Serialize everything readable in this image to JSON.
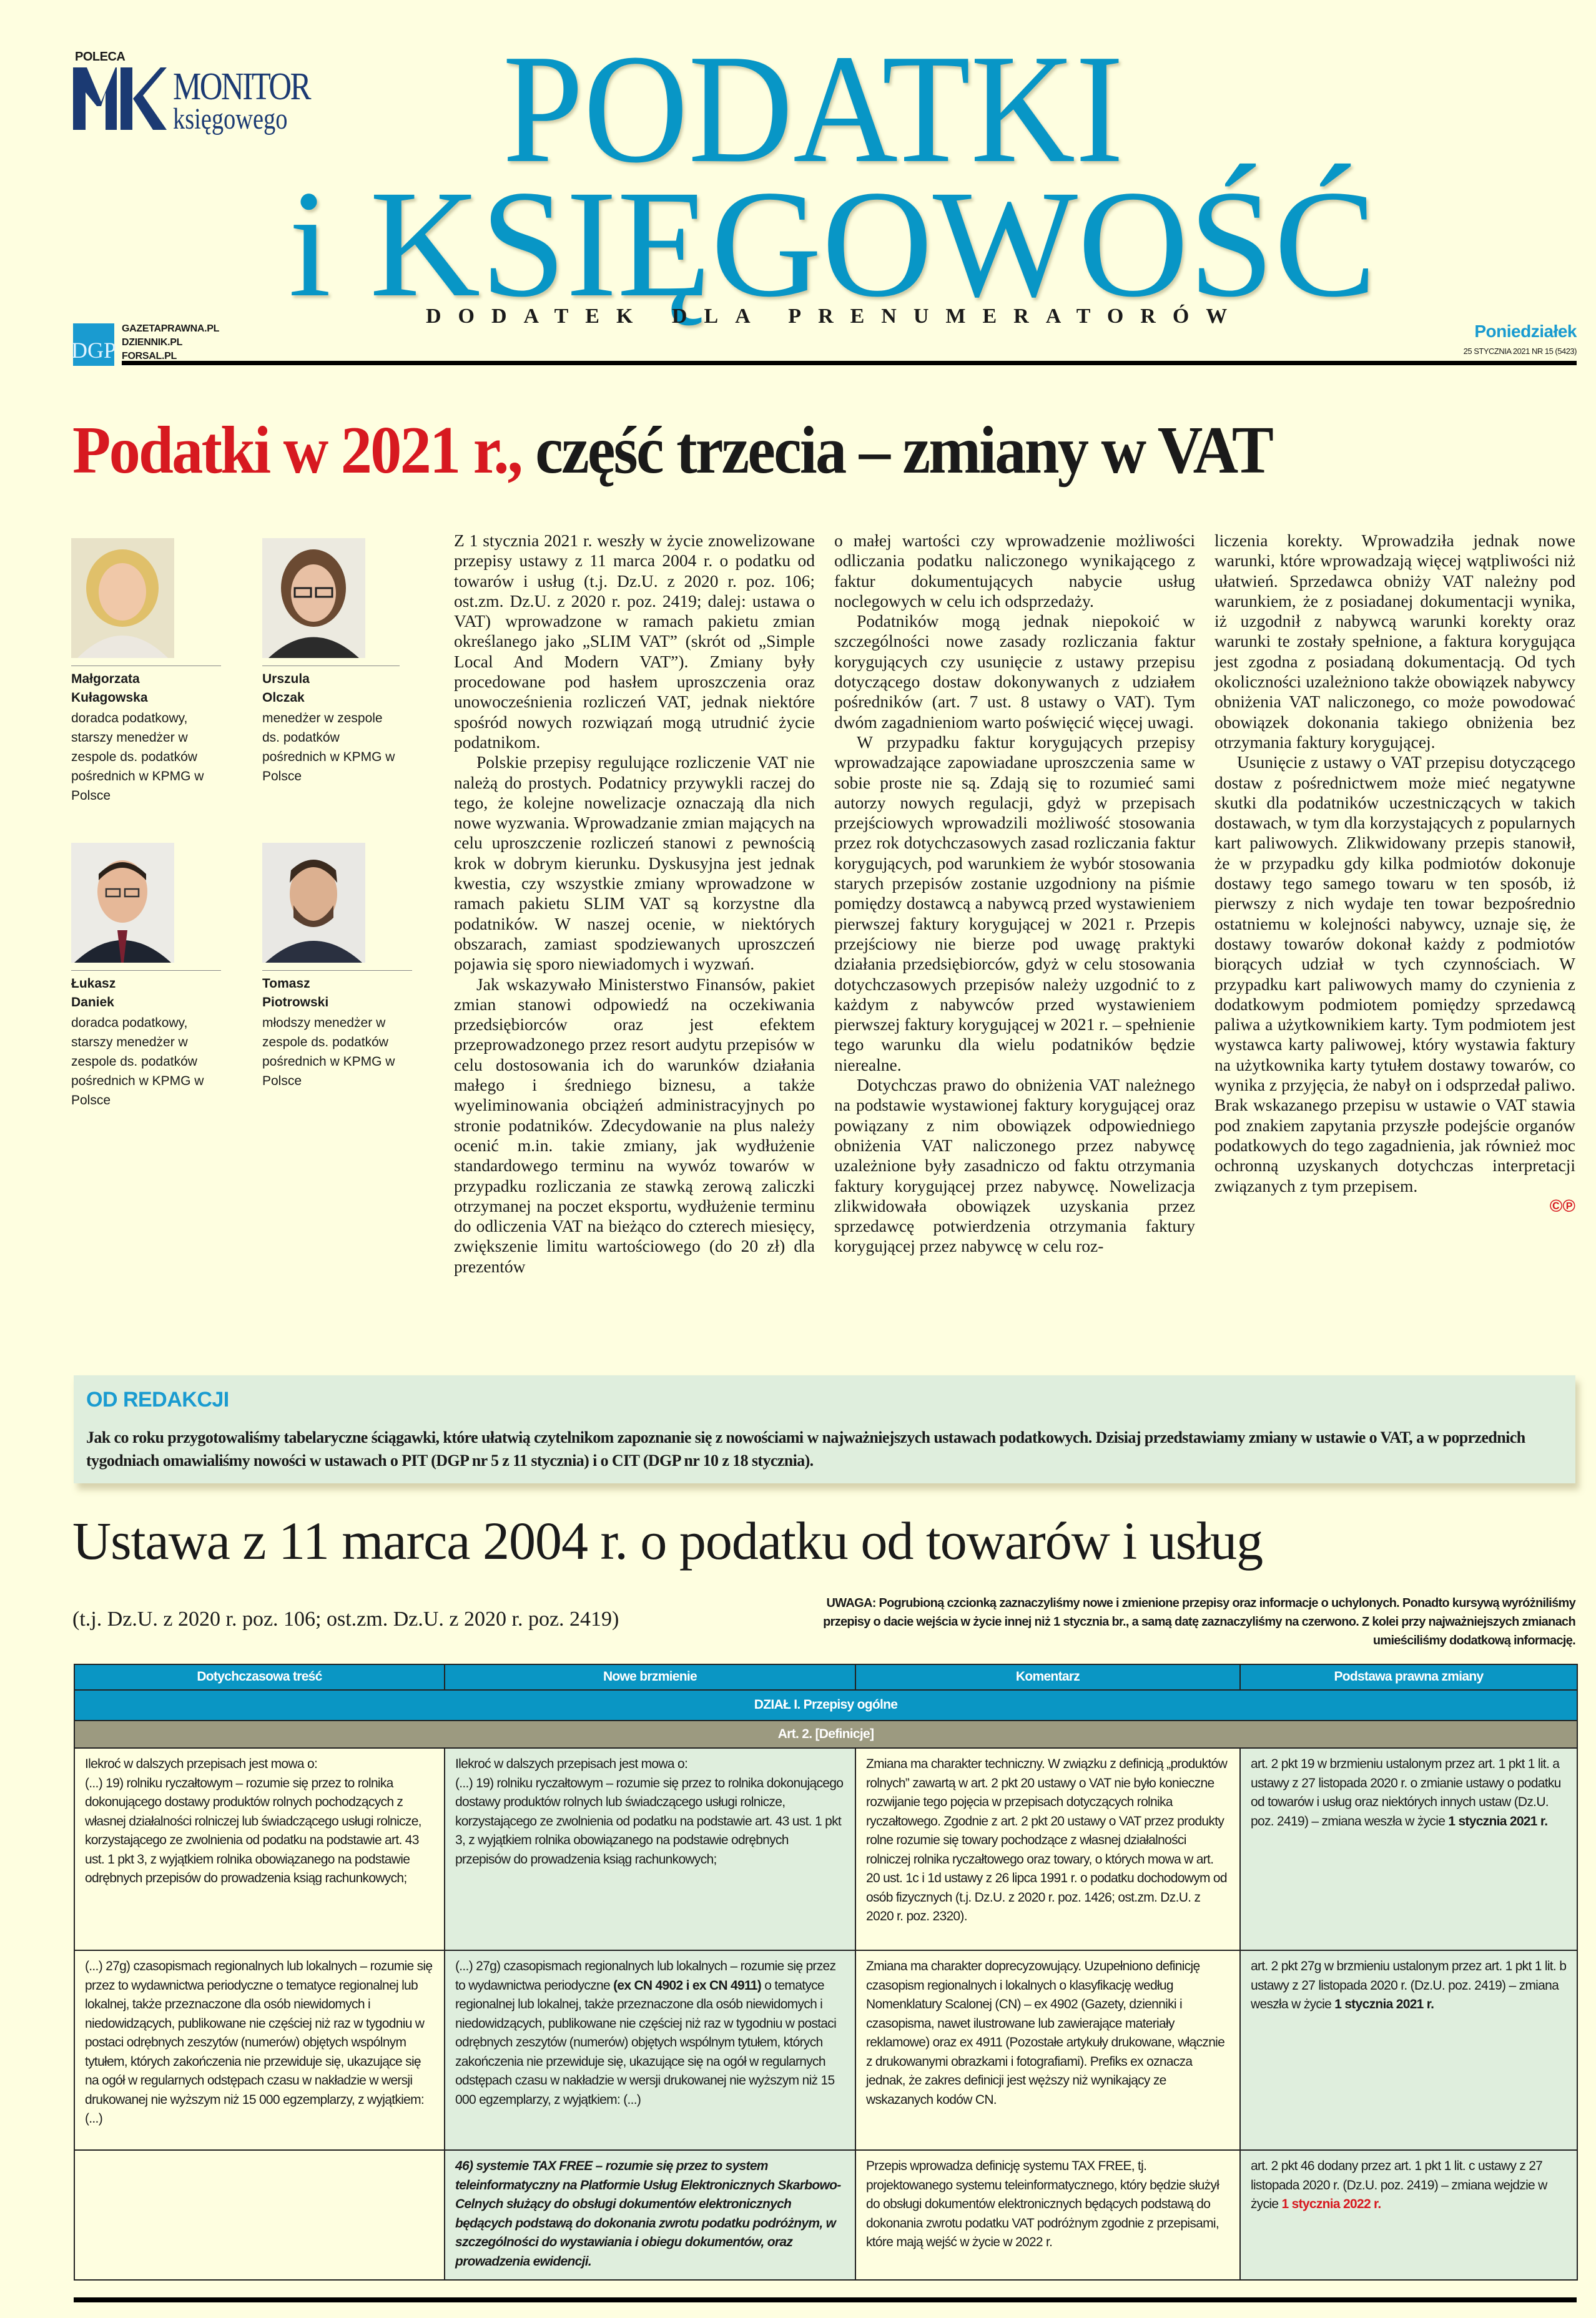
{
  "header": {
    "poleca": "POLECA",
    "partner_logo": {
      "mark": "MK",
      "line1": "MONITOR",
      "line2": "księgowego"
    },
    "title_line1": "PODATKI",
    "title_line2": "i KSIĘGOWOŚĆ",
    "subtitle": "DODATEK DLA PRENUMERATORÓW",
    "publisher_logo": "DGP",
    "sites": [
      "GAZETAPRAWNA.PL",
      "DZIENNIK.PL",
      "FORSAL.PL"
    ],
    "weekday": "Poniedziałek",
    "issue": "25 STYCZNIA 2021 NR 15 (5423)",
    "accent_color": "#0896c6"
  },
  "headline": {
    "red_part": "Podatki w 2021 r.,",
    "black_part": " część trzecia – zmiany w VAT"
  },
  "authors": [
    {
      "first": "Małgorzata",
      "last": "Kułagowska",
      "role": "doradca podatkowy, starszy menedżer w zespole ds. podatków pośrednich w KPMG w Polsce"
    },
    {
      "first": "Urszula",
      "last": "Olczak",
      "role": "menedżer w zespole ds. podatków pośrednich w KPMG w Polsce"
    },
    {
      "first": "Łukasz",
      "last": "Daniek",
      "role": "doradca podatkowy, starszy menedżer w zespole ds. podatków pośrednich w KPMG w Polsce"
    },
    {
      "first": "Tomasz",
      "last": "Piotrowski",
      "role": "młodszy menedżer w zespole ds. podatków pośrednich w KPMG w Polsce"
    }
  ],
  "article": {
    "col1": [
      "Z 1 stycznia 2021 r. weszły w życie znowelizowane przepisy ustawy z 11 marca 2004 r. o podatku od towarów i usług (t.j. Dz.U. z 2020 r. poz. 106; ost.zm. Dz.U. z 2020 r. poz. 2419; dalej: ustawa o VAT) wprowadzone w ramach pakietu zmian określanego jako „SLIM VAT” (skrót od „Simple Local And Modern VAT”). Zmiany były procedowane pod hasłem uproszczenia oraz unowocześnienia rozliczeń VAT, jednak niektóre spośród nowych rozwiązań mogą utrudnić życie podatnikom.",
      "Polskie przepisy regulujące rozliczenie VAT nie należą do prostych. Podatnicy przywykli raczej do tego, że kolejne nowelizacje oznaczają dla nich nowe wyzwania. Wprowadzanie zmian mających na celu uproszczenie rozliczeń stanowi z pewnością krok w dobrym kierunku. Dyskusyjna jest jednak kwestia, czy wszystkie zmiany wprowadzone w ramach pakietu SLIM VAT są korzystne dla podatników. W naszej ocenie, w niektórych obszarach, zamiast spodziewanych uproszczeń pojawia się sporo niewiadomych i wyzwań.",
      "Jak wskazywało Ministerstwo Finansów, pakiet zmian stanowi odpowiedź na oczekiwania przedsiębiorców oraz jest efektem przeprowadzonego przez resort audytu przepisów w celu dostosowania ich do warunków działania małego i średniego biznesu, a także wyeliminowania obciążeń administracyjnych po stronie podatników. Zdecydowanie na plus należy ocenić m.in. takie zmiany, jak wydłużenie standardowego terminu na wywóz towarów w przypadku rozliczania ze stawką zerową zaliczki otrzymanej na poczet eksportu, wydłużenie terminu do odliczenia VAT na bieżąco do czterech miesięcy, zwiększenie limitu wartościowego (do 20 zł) dla prezentów"
    ],
    "col2": [
      "o małej wartości czy wprowadzenie możliwości odliczania podatku naliczonego wynikającego z faktur dokumentujących nabycie usług noclegowych w celu ich odsprzedaży.",
      "Podatników mogą jednak niepokoić w szczególności nowe zasady rozliczania faktur korygujących czy usunięcie z ustawy przepisu dotyczącego dostaw dokonywanych z udziałem pośredników (art. 7 ust. 8 ustawy o VAT). Tym dwóm zagadnieniom warto poświęcić więcej uwagi.",
      "W przypadku faktur korygujących przepisy wprowadzające zapowiadane uproszczenia same w sobie proste nie są. Zdają się to rozumieć sami autorzy nowych regulacji, gdyż w przepisach przejściowych wprowadzili możliwość stosowania przez rok dotychczasowych zasad rozliczania faktur korygujących, pod warunkiem że wybór stosowania starych przepisów zostanie uzgodniony na piśmie pomiędzy dostawcą a nabywcą przed wystawieniem pierwszej faktury korygującej w 2021 r. Przepis przejściowy nie bierze pod uwagę praktyki działania przedsiębiorców, gdyż w celu stosowania dotychczasowych przepisów należy uzgodnić to z każdym z nabywców przed wystawieniem pierwszej faktury korygującej w 2021 r. – spełnienie tego warunku dla wielu podatników będzie nierealne.",
      "Dotychczas prawo do obniżenia VAT należnego na podstawie wystawionej faktury korygującej oraz powiązany z nim obowiązek odpowiedniego obniżenia VAT naliczonego przez nabywcę uzależnione były zasadniczo od faktu otrzymania faktury korygującej przez nabywcę. Nowelizacja zlikwidowała obowiązek uzyskania przez sprzedawcę potwierdzenia otrzymania faktury korygującej przez nabywcę w celu roz-"
    ],
    "col3": [
      "liczenia korekty. Wprowadziła jednak nowe warunki, które wprowadzają więcej wątpliwości niż ułatwień. Sprzedawca obniży VAT należny pod warunkiem, że z posiadanej dokumentacji wynika, iż uzgodnił z nabywcą warunki korekty oraz warunki te zostały spełnione, a faktura korygująca jest zgodna z posiadaną dokumentacją. Od tych okoliczności uzależniono także obowiązek nabywcy obniżenia VAT naliczonego, co może powodować obowiązek dokonania takiego obniżenia bez otrzymania faktury korygującej.",
      "Usunięcie z ustawy o VAT przepisu dotyczącego dostaw z pośrednictwem może mieć negatywne skutki dla podatników uczestniczących w takich dostawach, w tym dla korzystających z popularnych kart paliwowych. Zlikwidowany przepis stanowił, że w przypadku gdy kilka podmiotów dokonuje dostawy tego samego towaru w ten sposób, iż pierwszy z nich wydaje ten towar bezpośrednio ostatniemu w kolejności nabywcy, uznaje się, że dostawy towarów dokonał każdy z podmiotów biorących udział w tych czynnościach. W przypadku kart paliwowych mamy do czynienia z dodatkowym podmiotem pomiędzy sprzedawcą paliwa a użytkownikiem karty. Tym podmiotem jest wystawca karty paliwowej, który wystawia faktury na użytkownika karty tytułem dostawy towarów, co wynika z przyjęcia, że nabył on i odsprzedał paliwo. Brak wskazanego przepisu w ustawie o VAT stawia pod znakiem zapytania przyszłe podejście organów podatkowych do tego zagadnienia, jak również moc ochronną uzyskanych dotychczas interpretacji związanych z tym przepisem."
    ],
    "copyright_mark": "©℗"
  },
  "editorial": {
    "heading": "OD REDAKCJI",
    "text": "Jak co roku przygotowaliśmy tabelaryczne ściągawki, które ułatwią czytelnikom zapoznanie się z nowościami w najważniejszych ustawach podatkowych. Dzisiaj przedstawiamy zmiany w ustawie o VAT, a w poprzednich tygodniach omawialiśmy nowości w ustawach o PIT (DGP nr 5 z 11 stycznia) i o CIT (DGP nr 10 z 18 stycznia)."
  },
  "law": {
    "title": "Ustawa z 11 marca 2004 r. o podatku od towarów i usług",
    "citation": "(t.j. Dz.U. z 2020 r. poz. 106; ost.zm. Dz.U. z 2020 r. poz. 2419)",
    "note": "UWAGA: Pogrubioną czcionką zaznaczyliśmy nowe i zmienione przepisy oraz informacje o uchylonych. Ponadto kursywą wyróżniliśmy przepisy o dacie wejścia w życie innej niż 1 stycznia br., a samą datę zaznaczyliśmy na czerwono. Z kolei przy najważniejszych zmianach umieściliśmy dodatkową informację."
  },
  "table": {
    "headers": [
      "Dotychczasowa treść",
      "Nowe brzmienie",
      "Komentarz",
      "Podstawa prawna zmiany"
    ],
    "section": "DZIAŁ I. Przepisy ogólne",
    "article": "Art. 2. [Definicje]",
    "rows": [
      {
        "old": {
          "intro": "Ilekroć w dalszych przepisach jest mowa o:",
          "text": "(...) 19) rolniku ryczałtowym – rozumie się przez to rolnika dokonującego dostawy produktów rolnych pochodzących z własnej działalności rolniczej lub świadczącego usługi rolnicze, korzystającego ze zwolnienia od podatku na podstawie art. 43 ust. 1 pkt 3, z wyjątkiem rolnika obowiązanego na podstawie odrębnych przepisów do prowadzenia ksiąg rachunkowych;"
        },
        "new": {
          "intro": "Ilekroć w dalszych przepisach jest mowa o:",
          "text": "(...) 19) rolniku ryczałtowym – rozumie się przez to rolnika dokonującego dostawy produktów rolnych lub świadczącego usługi rolnicze, korzystającego ze zwolnienia od podatku na podstawie art. 43 ust. 1 pkt 3, z wyjątkiem rolnika obowiązanego na podstawie odrębnych przepisów do prowadzenia ksiąg rachunkowych;"
        },
        "comment": "Zmiana ma charakter techniczny. W związku z definicją „produktów rolnych” zawartą w art. 2 pkt 20 ustawy o VAT nie było konieczne rozwijanie tego pojęcia w przepisach dotyczących rolnika ryczałtowego. Zgodnie z art. 2 pkt 20 ustawy o VAT przez produkty rolne rozumie się towary pochodzące z własnej działalności rolniczej rolnika ryczałtowego oraz towary, o których mowa w art. 20 ust. 1c i 1d ustawy z 26 lipca 1991 r. o podatku dochodowym od osób fizycznych (t.j. Dz.U. z 2020 r. poz. 1426; ost.zm. Dz.U. z 2020 r. poz. 2320).",
        "basis": {
          "text": "art. 2 pkt 19 w brzmieniu ustalonym przez art. 1 pkt 1 lit. a ustawy z 27 listopada 2020 r. o zmianie ustawy o podatku od towarów i usług oraz niektórych innych ustaw (Dz.U. poz. 2419) – zmiana weszła w życie ",
          "date": "1 stycznia 2021 r."
        }
      },
      {
        "old": {
          "text": "(...) 27g) czasopismach regionalnych lub lokalnych – rozumie się przez to wydawnictwa periodyczne o tematyce regionalnej lub lokalnej, także przeznaczone dla osób niewidomych i niedowidzących, publikowane nie częściej niż raz w tygodniu w postaci odrębnych zeszytów (numerów) objętych wspólnym tytułem, których zakończenia nie przewiduje się, ukazujące się na ogół w regularnych odstępach czasu w nakładzie w wersji drukowanej nie wyższym niż 15 000 egzemplarzy, z wyjątkiem: (...)"
        },
        "new": {
          "before": "(...) 27g) czasopismach regionalnych lub lokalnych – rozumie się przez to wydawnictwa periodyczne ",
          "bold": "(ex CN 4902 i ex CN 4911)",
          "after": " o tematyce regionalnej lub lokalnej, także przeznaczone dla osób niewidomych i niedowidzących, publikowane nie częściej niż raz w tygodniu w postaci odrębnych zeszytów (numerów) objętych wspólnym tytułem, których zakończenia nie przewiduje się, ukazujące się na ogół w regularnych odstępach czasu w nakładzie w wersji drukowanej nie wyższym niż 15 000 egzemplarzy, z wyjątkiem: (...)"
        },
        "comment": "Zmiana ma charakter doprecyzowujący. Uzupełniono definicję czasopism regionalnych i lokalnych o klasyfikację według Nomenklatury Scalonej (CN) – ex 4902 (Gazety, dzienniki i czasopisma, nawet ilustrowane lub zawierające materiały reklamowe) oraz ex 4911 (Pozostałe artykuły drukowane, włącznie z drukowanymi obrazkami i fotografiami). Prefiks ex oznacza jednak, że zakres definicji jest węższy niż wynikający ze wskazanych kodów CN.",
        "basis": {
          "text": "art. 2 pkt 27g w brzmieniu ustalonym przez art. 1 pkt 1 lit. b ustawy z 27 listopada 2020 r. (Dz.U. poz. 2419) – zmiana weszła w życie ",
          "date": "1 stycznia 2021 r."
        }
      },
      {
        "old": {
          "text": ""
        },
        "new": {
          "text": "46) systemie TAX FREE – rozumie się przez to system teleinformatyczny na Platformie Usług Elektronicznych Skarbowo-Celnych służący do obsługi dokumentów elektronicznych będących podstawą do dokonania zwrotu podatku podróżnym, w szczególności do wystawiania i obiegu dokumentów, oraz prowadzenia ewidencji."
        },
        "comment": "Przepis wprowadza definicję systemu TAX FREE, tj. projektowanego systemu teleinformatycznego, który będzie służył do obsługi dokumentów elektronicznych będących podstawą do dokonania zwrotu podatku VAT podróżnym zgodnie z przepisami, które mają wejść w życie w 2022 r.",
        "basis": {
          "text": "art. 2 pkt 46 dodany przez art. 1 pkt 1 lit. c ustawy z 27 listopada 2020 r. (Dz.U. poz. 2419) – zmiana wejdzie w życie ",
          "date": "1 stycznia 2022 r."
        }
      }
    ],
    "colors": {
      "header": "#0a96c4",
      "article_row": "#9c9a80",
      "new_column": "#dfeedd",
      "future_date": "#d71920"
    }
  }
}
